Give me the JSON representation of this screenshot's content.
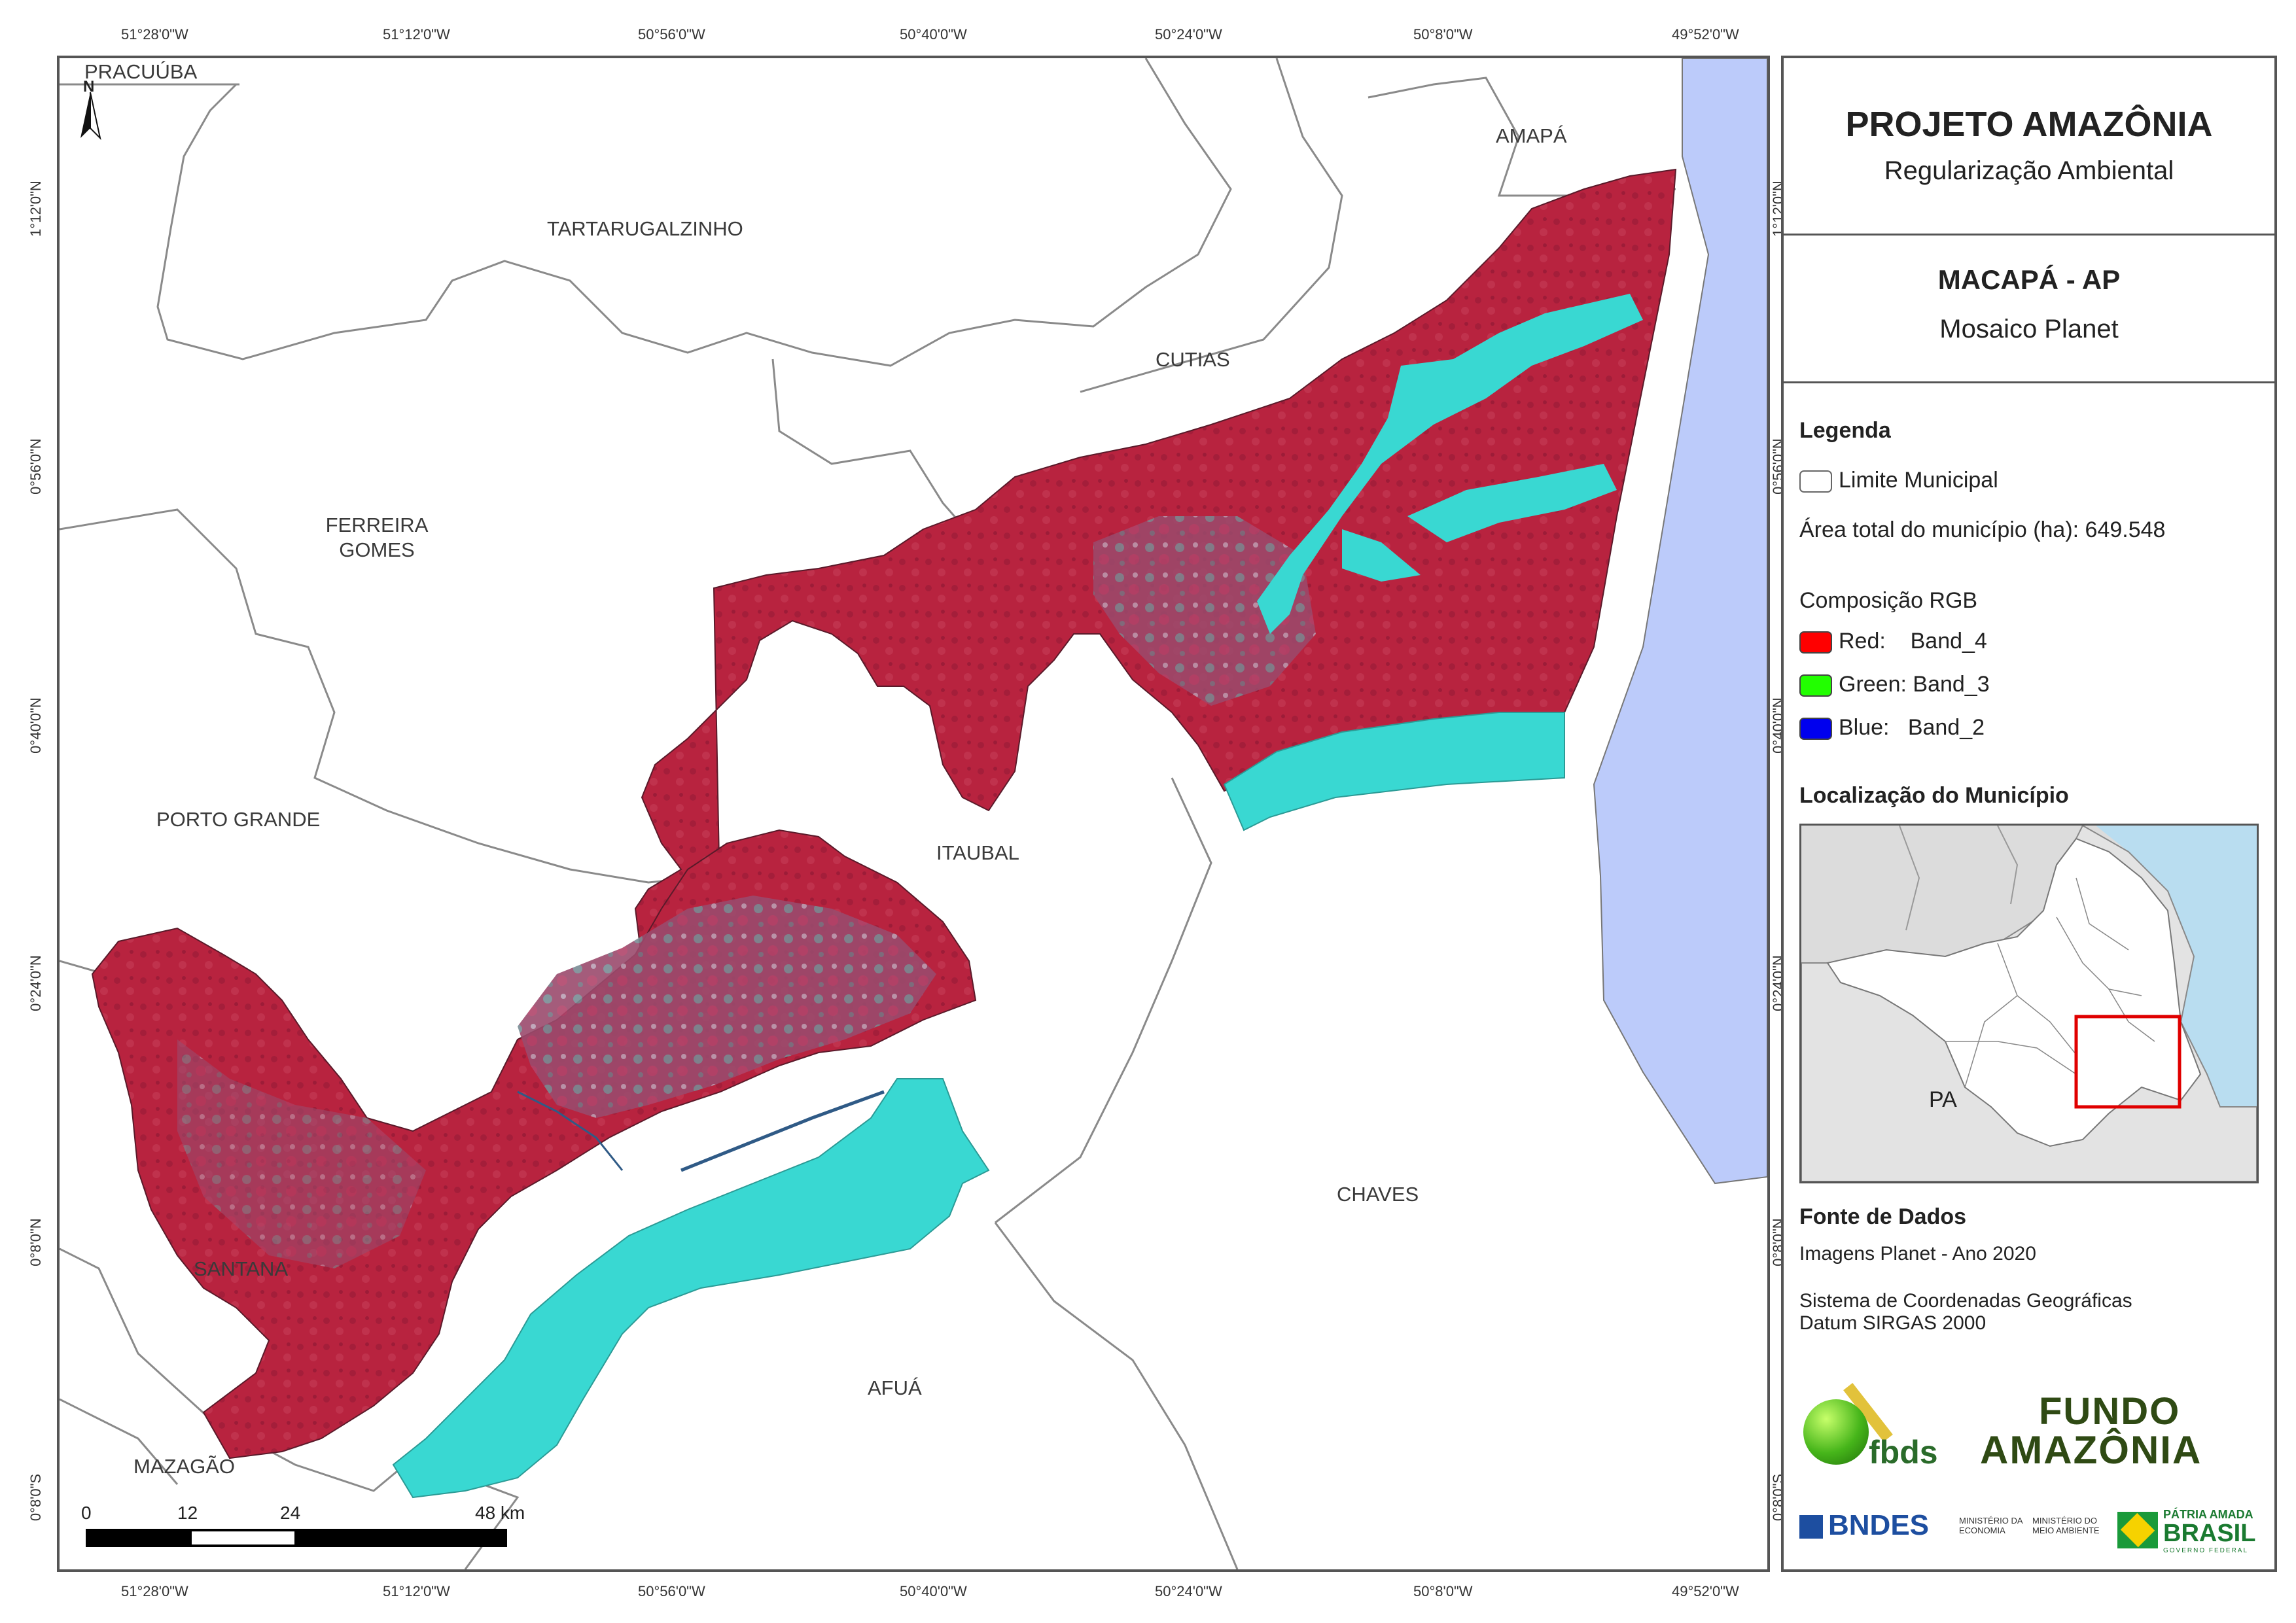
{
  "map": {
    "north": "N",
    "coords_top": [
      "51°28'0\"W",
      "51°12'0\"W",
      "50°56'0\"W",
      "50°40'0\"W",
      "50°24'0\"W",
      "50°8'0\"W",
      "49°52'0\"W"
    ],
    "coords_bottom": [
      "51°28'0\"W",
      "51°12'0\"W",
      "50°56'0\"W",
      "50°40'0\"W",
      "50°24'0\"W",
      "50°8'0\"W",
      "49°52'0\"W"
    ],
    "coords_left": [
      "1°12'0\"N",
      "0°56'0\"N",
      "0°40'0\"N",
      "0°24'0\"N",
      "0°8'0\"N",
      "0°8'0\"S"
    ],
    "coords_right": [
      "1°12'0\"N",
      "0°56'0\"N",
      "0°40'0\"N",
      "0°24'0\"N",
      "0°8'0\"N",
      "0°8'0\"S"
    ],
    "municipalities": {
      "pracuuba": "PRACUÚBA",
      "amapa": "AMAPÁ",
      "tartarugalzinho": "TARTARUGALZINHO",
      "cutias": "CUTIAS",
      "ferreira": "FERREIRA",
      "gomes": "GOMES",
      "porto_grande": "PORTO GRANDE",
      "itaubal": "ITAUBAL",
      "santana": "SANTANA",
      "chaves": "CHAVES",
      "afua": "AFUÁ",
      "mazagao": "MAZAGÃO"
    },
    "scale": {
      "ticks": [
        "0",
        "12",
        "24",
        "48 km"
      ]
    },
    "colors": {
      "ocean": "#bccbfa",
      "water": "#39d8d2",
      "veg": "#b8233f",
      "border": "#888888"
    }
  },
  "panel": {
    "title": "PROJETO AMAZÔNIA",
    "subtitle": "Regularização Ambiental",
    "place": "MACAPÁ - AP",
    "product": "Mosaico Planet",
    "legend_title": "Legenda",
    "limite": "Limite Municipal",
    "area": "Área total do município (ha): 649.548",
    "rgb_title": "Composição RGB",
    "red": "Red:    Band_4",
    "green": "Green: Band_3",
    "blue": "Blue:   Band_2",
    "loc_title": "Localização do Município",
    "loc_label": "PA",
    "fonte_title": "Fonte de Dados",
    "fonte_1": "Imagens Planet - Ano 2020",
    "fonte_2": "Sistema de Coordenadas Geográficas",
    "fonte_3": "Datum SIRGAS 2000",
    "logo_fbds": "fbds",
    "logo_fundo_1": "FUNDO",
    "logo_fundo_2": "AMAZÔNIA",
    "logo_bndes": "BNDES",
    "logo_min_eco": "MINISTÉRIO DA ECONOMIA",
    "logo_min_ma": "MINISTÉRIO DO MEIO AMBIENTE",
    "logo_patria": "PÁTRIA AMADA",
    "logo_brasil": "BRASIL",
    "logo_gov": "GOVERNO FEDERAL"
  }
}
